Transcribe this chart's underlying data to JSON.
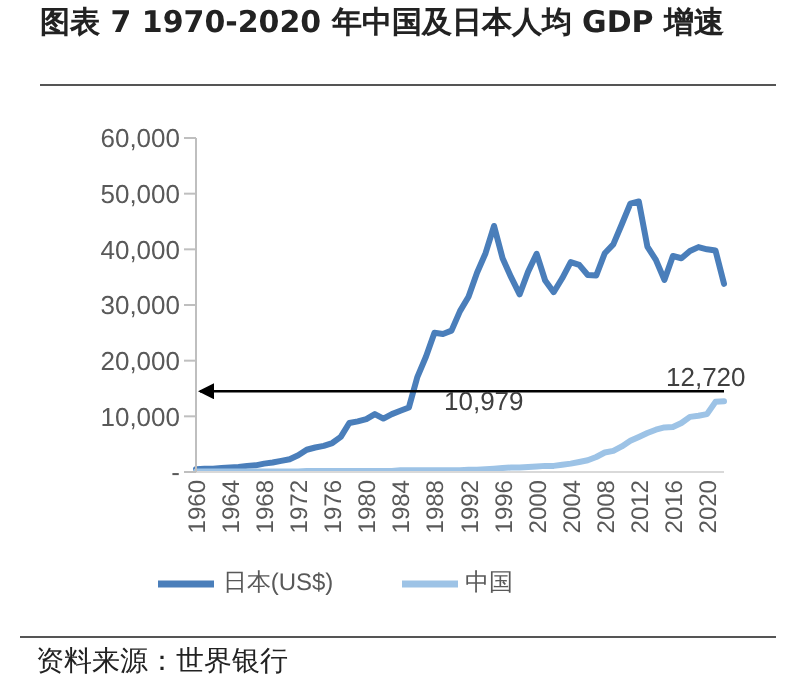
{
  "chart_data": {
    "type": "line",
    "title": "图表 7 1970-2020 年中国及日本人均 GDP 增速",
    "categories": [
      "1960",
      null,
      null,
      null,
      "1964",
      null,
      null,
      null,
      "1968",
      null,
      null,
      null,
      "1972",
      null,
      null,
      null,
      "1976",
      null,
      null,
      null,
      "1980",
      null,
      null,
      null,
      "1984",
      null,
      null,
      null,
      "1988",
      null,
      null,
      null,
      "1992",
      null,
      null,
      null,
      "1996",
      null,
      null,
      null,
      "2000",
      null,
      null,
      null,
      "2004",
      null,
      null,
      null,
      "2008",
      null,
      null,
      null,
      "2012",
      null,
      null,
      null,
      "2016",
      null,
      null,
      null,
      "2020",
      null,
      null
    ],
    "series": [
      {
        "name": "日本(US$)",
        "color": "#4a7eba",
        "values": [
          500,
          600,
          600,
          700,
          800,
          900,
          1100,
          1200,
          1500,
          1700,
          2000,
          2300,
          3000,
          4000,
          4400,
          4700,
          5200,
          6300,
          8800,
          9100,
          9500,
          10400,
          9600,
          10400,
          11000,
          11600,
          17100,
          20700,
          25000,
          24800,
          25400,
          28900,
          31500,
          35800,
          39300,
          44200,
          38400,
          35000,
          31900,
          36000,
          39200,
          34400,
          32300,
          34800,
          37700,
          37200,
          35400,
          35300,
          39300,
          40900,
          44500,
          48200,
          48600,
          40500,
          38100,
          34500,
          38800,
          38400,
          39700,
          40400,
          40000,
          39800,
          33800
        ]
      },
      {
        "name": "中国",
        "color": "#9dc3e6",
        "values": [
          100,
          100,
          100,
          100,
          100,
          100,
          100,
          100,
          100,
          100,
          100,
          100,
          100,
          200,
          200,
          200,
          200,
          200,
          200,
          200,
          200,
          200,
          200,
          200,
          300,
          300,
          300,
          300,
          300,
          300,
          300,
          300,
          400,
          400,
          500,
          600,
          700,
          800,
          800,
          900,
          1000,
          1100,
          1100,
          1300,
          1500,
          1800,
          2100,
          2700,
          3500,
          3800,
          4600,
          5600,
          6300,
          7000,
          7600,
          8000,
          8100,
          8800,
          9900,
          10100,
          10400,
          12600,
          12700
        ]
      }
    ],
    "ylim": [
      0,
      60000
    ],
    "yticks": [
      {
        "value": 0,
        "label": "-"
      },
      {
        "value": 10000,
        "label": "10,000"
      },
      {
        "value": 20000,
        "label": "20,000"
      },
      {
        "value": 30000,
        "label": "30,000"
      },
      {
        "value": 40000,
        "label": "40,000"
      },
      {
        "value": 50000,
        "label": "50,000"
      },
      {
        "value": 60000,
        "label": "60,000"
      }
    ],
    "ref_lines": [
      {
        "axis": "y",
        "value": 14500,
        "color": "#000000"
      }
    ],
    "annotations": [
      "10,979",
      "12,720",
      "资料来源：世界银行"
    ],
    "legend": "bottom",
    "marker": "none",
    "line_style": "solid"
  }
}
